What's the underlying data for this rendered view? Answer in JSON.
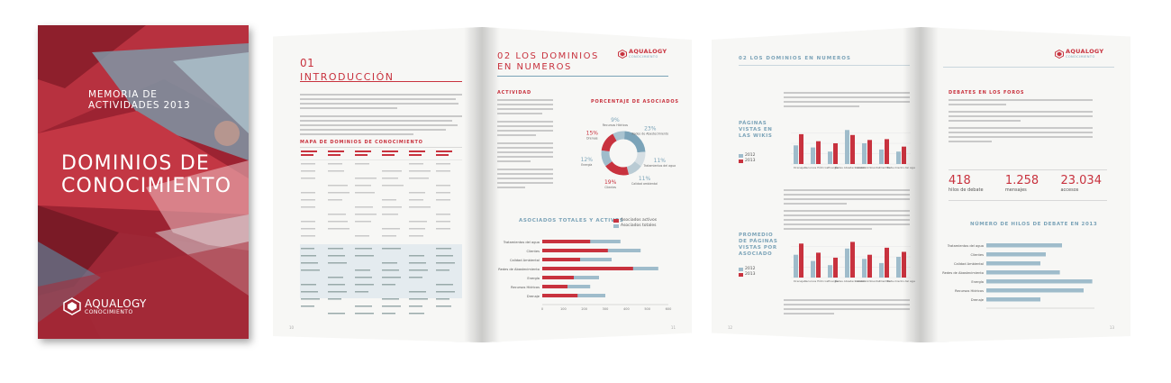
{
  "cover": {
    "memoria": "MEMORIA DE ACTIVIDADES 2013",
    "title_line1": "DOMINIOS DE",
    "title_line2": "CONOCIMIENTO",
    "logo_word": "AQUALOGY",
    "logo_sub": "CONOCIMIENTO"
  },
  "brand": {
    "logo_word": "AQUALOGY",
    "logo_sub": "CONOCIMIENTO",
    "accent": "#c8323e",
    "accent2": "#7ba3b8"
  },
  "spread1": {
    "left": {
      "sec_num": "01",
      "sec_title": "INTRODUCCIÓN",
      "map_head": "MAPA DE DOMINIOS DE CONOCIMIENTO",
      "page_num": "10"
    },
    "right": {
      "sec_title_line1": "02 LOS DOMINIOS",
      "sec_title_line2": "EN NUMEROS",
      "sub_head": "ACTIVIDAD",
      "donut_title": "PORCENTAJE DE ASOCIADOS",
      "bars_title": "ASOCIADOS TOTALES Y ACTIVOS",
      "legend_active": "Asociados activos",
      "legend_total": "Asociados totales",
      "page_num": "11",
      "donut": [
        {
          "label": "Recursos Hídricos",
          "pct": "9%"
        },
        {
          "label": "Redes de Abastecimiento",
          "pct": "23%"
        },
        {
          "label": "Tratamientos del agua",
          "pct": "11%"
        },
        {
          "label": "Calidad ambiental",
          "pct": "11%"
        },
        {
          "label": "Clientes",
          "pct": "19%"
        },
        {
          "label": "Energía",
          "pct": "12%"
        },
        {
          "label": "Drenaje",
          "pct": "15%"
        }
      ],
      "bar_categories": [
        "Tratamientos del agua",
        "Clientes",
        "Calidad Ambiental",
        "Redes de Abastecimiento",
        "Energía",
        "Recursos Hídricos",
        "Drenaje"
      ],
      "bar_axis": [
        "0",
        "100",
        "200",
        "300",
        "400",
        "500",
        "600"
      ]
    }
  },
  "spread2": {
    "left": {
      "header": "02 LOS DOMINIOS EN NUMEROS",
      "chart1_title_l1": "PÁGINAS",
      "chart1_title_l2": "VISTAS EN",
      "chart1_title_l3": "LAS WIKIS",
      "chart2_title_l1": "PROMEDIO",
      "chart2_title_l2": "DE PÁGINAS",
      "chart2_title_l3": "VISTAS POR",
      "chart2_title_l4": "ASOCIADO",
      "legend_2012": "2012",
      "legend_2013": "2013",
      "categories": [
        "Drenaje",
        "Recursos Hídricos",
        "Energía",
        "Redes Abasteci-miento",
        "Calidad Ambiental",
        "Clientes",
        "Trata-miento del agua"
      ],
      "page_num": "12"
    },
    "right": {
      "forum_head": "DEBATES EN LOS FOROS",
      "stat1_num": "418",
      "stat1_lbl": "hilos de debate",
      "stat2_num": "1.258",
      "stat2_lbl": "mensajes",
      "stat3_num": "23.034",
      "stat3_lbl": "accesos",
      "chart_title": "NÚMERO DE HILOS DE DEBATE EN 2013",
      "categories": [
        "Tratamientos del agua",
        "Clientes",
        "Calidad Ambiental",
        "Redes de Abastecimiento",
        "Energía",
        "Recursos Hídricos",
        "Drenaje"
      ],
      "page_num": "13"
    }
  }
}
